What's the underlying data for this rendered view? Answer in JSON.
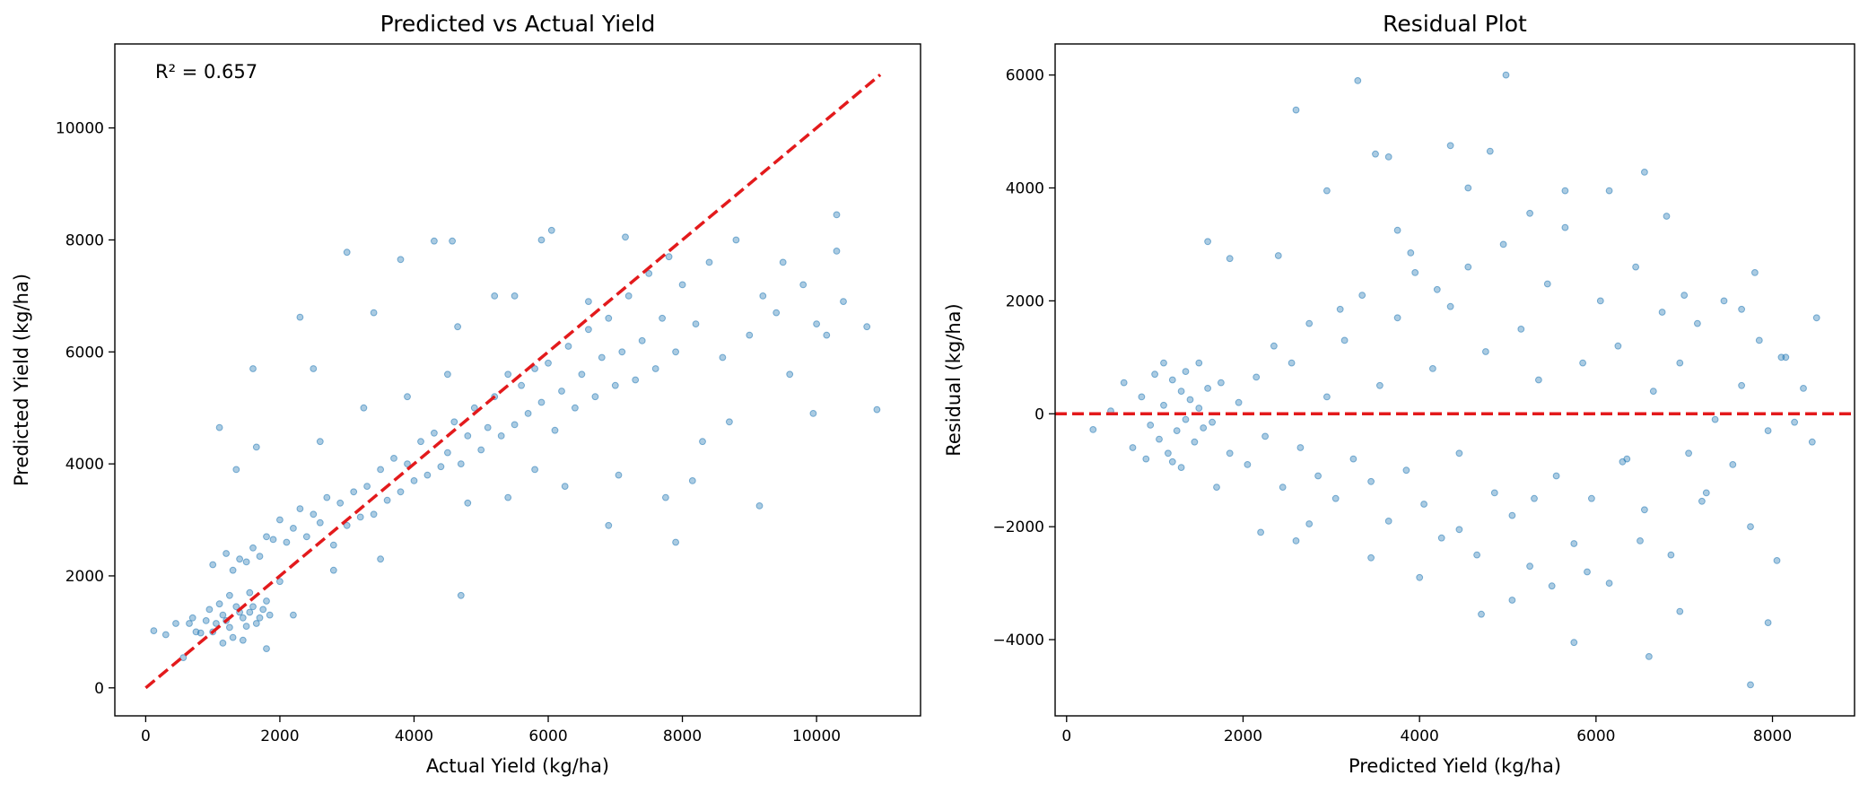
{
  "colors": {
    "points": "#1f77b4",
    "reference_line": "#e31a1c",
    "axes": "#000000",
    "background": "#ffffff"
  },
  "chart_data": [
    {
      "type": "scatter",
      "title": "Predicted vs Actual Yield",
      "xlabel": "Actual Yield (kg/ha)",
      "ylabel": "Predicted Yield (kg/ha)",
      "xlim": [
        -460,
        11550
      ],
      "ylim": [
        -500,
        11500
      ],
      "xticks": [
        0,
        2000,
        4000,
        6000,
        8000,
        10000
      ],
      "yticks": [
        0,
        2000,
        4000,
        6000,
        8000,
        10000
      ],
      "xtick_labels": [
        "0",
        "2000",
        "4000",
        "6000",
        "8000",
        "10000"
      ],
      "ytick_labels": [
        "0",
        "2000",
        "4000",
        "6000",
        "8000",
        "10000"
      ],
      "grid": false,
      "annotation": "R² = 0.657",
      "reference_line": {
        "style": "dashed",
        "from": [
          0,
          0
        ],
        "to": [
          10950,
          10950
        ]
      },
      "points": [
        [
          560,
          540
        ],
        [
          120,
          1020
        ],
        [
          300,
          950
        ],
        [
          450,
          1150
        ],
        [
          700,
          1250
        ],
        [
          820,
          980
        ],
        [
          950,
          1400
        ],
        [
          1050,
          1150
        ],
        [
          1150,
          1300
        ],
        [
          1250,
          1080
        ],
        [
          1350,
          1450
        ],
        [
          1450,
          1250
        ],
        [
          1550,
          1350
        ],
        [
          1650,
          1150
        ],
        [
          1750,
          1400
        ],
        [
          1850,
          1300
        ],
        [
          900,
          1200
        ],
        [
          1000,
          1000
        ],
        [
          1100,
          1500
        ],
        [
          1200,
          1200
        ],
        [
          1300,
          900
        ],
        [
          1400,
          1350
        ],
        [
          1500,
          1100
        ],
        [
          1600,
          1450
        ],
        [
          1700,
          1250
        ],
        [
          1800,
          1550
        ],
        [
          1250,
          1650
        ],
        [
          1550,
          1700
        ],
        [
          1150,
          800
        ],
        [
          1450,
          850
        ],
        [
          750,
          1000
        ],
        [
          650,
          1150
        ],
        [
          1000,
          2200
        ],
        [
          1200,
          2400
        ],
        [
          1400,
          2300
        ],
        [
          1600,
          2500
        ],
        [
          1800,
          2700
        ],
        [
          1300,
          2100
        ],
        [
          1500,
          2250
        ],
        [
          1700,
          2350
        ],
        [
          1900,
          2650
        ],
        [
          2000,
          3000
        ],
        [
          2100,
          2600
        ],
        [
          2200,
          2850
        ],
        [
          2300,
          3200
        ],
        [
          2400,
          2700
        ],
        [
          2500,
          3100
        ],
        [
          2600,
          2950
        ],
        [
          2700,
          3400
        ],
        [
          2800,
          2550
        ],
        [
          2900,
          3300
        ],
        [
          3000,
          2900
        ],
        [
          3100,
          3500
        ],
        [
          3200,
          3050
        ],
        [
          3300,
          3600
        ],
        [
          3400,
          3100
        ],
        [
          3500,
          3900
        ],
        [
          3600,
          3350
        ],
        [
          3700,
          4100
        ],
        [
          3800,
          3500
        ],
        [
          3900,
          4000
        ],
        [
          4000,
          3700
        ],
        [
          4100,
          4400
        ],
        [
          4200,
          3800
        ],
        [
          4300,
          4550
        ],
        [
          4400,
          3950
        ],
        [
          4500,
          4200
        ],
        [
          4600,
          4750
        ],
        [
          4700,
          4000
        ],
        [
          4800,
          4500
        ],
        [
          4900,
          5000
        ],
        [
          5000,
          4250
        ],
        [
          5100,
          4650
        ],
        [
          5200,
          5200
        ],
        [
          5300,
          4500
        ],
        [
          5400,
          5600
        ],
        [
          5500,
          4700
        ],
        [
          5600,
          5400
        ],
        [
          5700,
          4900
        ],
        [
          5800,
          5700
        ],
        [
          5900,
          5100
        ],
        [
          6000,
          5800
        ],
        [
          6100,
          4600
        ],
        [
          6200,
          5300
        ],
        [
          6300,
          6100
        ],
        [
          6400,
          5000
        ],
        [
          6500,
          5600
        ],
        [
          6600,
          6400
        ],
        [
          6700,
          5200
        ],
        [
          6800,
          5900
        ],
        [
          6900,
          6600
        ],
        [
          7000,
          5400
        ],
        [
          7100,
          6000
        ],
        [
          7200,
          7000
        ],
        [
          7300,
          5500
        ],
        [
          7400,
          6200
        ],
        [
          7500,
          7400
        ],
        [
          7600,
          5700
        ],
        [
          7700,
          6600
        ],
        [
          7800,
          7700
        ],
        [
          7900,
          6000
        ],
        [
          8000,
          7200
        ],
        [
          8200,
          6500
        ],
        [
          8400,
          7600
        ],
        [
          8600,
          5900
        ],
        [
          8800,
          8000
        ],
        [
          9000,
          6300
        ],
        [
          9200,
          7000
        ],
        [
          9400,
          6700
        ],
        [
          9600,
          5600
        ],
        [
          9800,
          7200
        ],
        [
          10000,
          6500
        ],
        [
          10300,
          7800
        ],
        [
          10300,
          8450
        ],
        [
          10400,
          6900
        ],
        [
          10900,
          4970
        ],
        [
          9150,
          3250
        ],
        [
          7900,
          2600
        ],
        [
          6900,
          2900
        ],
        [
          4700,
          1650
        ],
        [
          3000,
          7780
        ],
        [
          3800,
          7650
        ],
        [
          4300,
          7980
        ],
        [
          4570,
          7980
        ],
        [
          6050,
          8170
        ],
        [
          5200,
          7000
        ],
        [
          5500,
          7000
        ],
        [
          2300,
          6620
        ],
        [
          1100,
          4650
        ],
        [
          1350,
          3900
        ],
        [
          1600,
          5700
        ],
        [
          2500,
          5700
        ],
        [
          3400,
          6700
        ],
        [
          4650,
          6450
        ],
        [
          3500,
          2300
        ],
        [
          2800,
          2100
        ],
        [
          2200,
          1300
        ],
        [
          2000,
          1900
        ],
        [
          1800,
          700
        ],
        [
          1650,
          4300
        ],
        [
          2600,
          4400
        ],
        [
          3250,
          5000
        ],
        [
          3900,
          5200
        ],
        [
          4500,
          5600
        ],
        [
          4800,
          3300
        ],
        [
          5400,
          3400
        ],
        [
          5800,
          3900
        ],
        [
          6250,
          3600
        ],
        [
          7050,
          3800
        ],
        [
          7750,
          3400
        ],
        [
          8300,
          4400
        ],
        [
          8700,
          4750
        ],
        [
          9500,
          7600
        ],
        [
          10750,
          6450
        ],
        [
          10150,
          6300
        ],
        [
          9950,
          4900
        ],
        [
          8150,
          3700
        ],
        [
          6600,
          6900
        ],
        [
          5900,
          8000
        ],
        [
          7150,
          8050
        ]
      ]
    },
    {
      "type": "scatter",
      "title": "Residual Plot",
      "xlabel": "Predicted Yield (kg/ha)",
      "ylabel": "Residual (kg/ha)",
      "xlim": [
        -130,
        8930
      ],
      "ylim": [
        -5350,
        6550
      ],
      "xticks": [
        0,
        2000,
        4000,
        6000,
        8000
      ],
      "yticks": [
        -4000,
        -2000,
        0,
        2000,
        4000,
        6000
      ],
      "xtick_labels": [
        "0",
        "2000",
        "4000",
        "6000",
        "8000"
      ],
      "ytick_labels": [
        "−4000",
        "−2000",
        "0",
        "2000",
        "4000",
        "6000"
      ],
      "grid": false,
      "reference_line": {
        "style": "dashed",
        "y": 0
      },
      "points": [
        [
          300,
          -280
        ],
        [
          500,
          50
        ],
        [
          650,
          550
        ],
        [
          750,
          -600
        ],
        [
          850,
          300
        ],
        [
          950,
          -200
        ],
        [
          1000,
          700
        ],
        [
          1050,
          -450
        ],
        [
          1100,
          150
        ],
        [
          1150,
          -700
        ],
        [
          1200,
          600
        ],
        [
          1250,
          -300
        ],
        [
          1300,
          400
        ],
        [
          1350,
          -100
        ],
        [
          1400,
          250
        ],
        [
          1450,
          -500
        ],
        [
          1500,
          100
        ],
        [
          1550,
          -250
        ],
        [
          1600,
          450
        ],
        [
          1100,
          900
        ],
        [
          1200,
          -850
        ],
        [
          1350,
          750
        ],
        [
          1650,
          -150
        ],
        [
          1750,
          550
        ],
        [
          1850,
          -700
        ],
        [
          1950,
          200
        ],
        [
          2050,
          -900
        ],
        [
          2150,
          650
        ],
        [
          2250,
          -400
        ],
        [
          2350,
          1200
        ],
        [
          2450,
          -1300
        ],
        [
          2550,
          900
        ],
        [
          2650,
          -600
        ],
        [
          2750,
          1600
        ],
        [
          2850,
          -1100
        ],
        [
          2950,
          300
        ],
        [
          3050,
          -1500
        ],
        [
          3150,
          1300
        ],
        [
          3250,
          -800
        ],
        [
          3350,
          2100
        ],
        [
          3450,
          -1200
        ],
        [
          3550,
          500
        ],
        [
          3650,
          -1900
        ],
        [
          3750,
          1700
        ],
        [
          3850,
          -1000
        ],
        [
          3950,
          2500
        ],
        [
          4050,
          -1600
        ],
        [
          4150,
          800
        ],
        [
          4250,
          -2200
        ],
        [
          4350,
          1900
        ],
        [
          4450,
          -700
        ],
        [
          4550,
          2600
        ],
        [
          4650,
          -2500
        ],
        [
          4750,
          1100
        ],
        [
          4850,
          -1400
        ],
        [
          4950,
          3000
        ],
        [
          5050,
          -1800
        ],
        [
          5150,
          1500
        ],
        [
          5250,
          -2700
        ],
        [
          5350,
          600
        ],
        [
          5450,
          2300
        ],
        [
          5550,
          -1100
        ],
        [
          5650,
          3300
        ],
        [
          5750,
          -2300
        ],
        [
          5850,
          900
        ],
        [
          5950,
          -1500
        ],
        [
          6050,
          2000
        ],
        [
          6150,
          -3000
        ],
        [
          6250,
          1200
        ],
        [
          6350,
          -800
        ],
        [
          6450,
          2600
        ],
        [
          6550,
          -1700
        ],
        [
          6650,
          400
        ],
        [
          6750,
          1800
        ],
        [
          6850,
          -2500
        ],
        [
          6950,
          900
        ],
        [
          7050,
          -700
        ],
        [
          7150,
          1600
        ],
        [
          7250,
          -1400
        ],
        [
          7350,
          -100
        ],
        [
          7450,
          2000
        ],
        [
          7550,
          -900
        ],
        [
          7650,
          500
        ],
        [
          7750,
          -2000
        ],
        [
          7850,
          1300
        ],
        [
          7950,
          -300
        ],
        [
          8050,
          -2600
        ],
        [
          8150,
          1000
        ],
        [
          8250,
          -150
        ],
        [
          8350,
          450
        ],
        [
          8500,
          1700
        ],
        [
          7750,
          -4800
        ],
        [
          7950,
          -3700
        ],
        [
          6600,
          -4300
        ],
        [
          5750,
          -4050
        ],
        [
          5050,
          -3300
        ],
        [
          4700,
          -3550
        ],
        [
          3300,
          5900
        ],
        [
          4980,
          6000
        ],
        [
          2600,
          5380
        ],
        [
          3500,
          4600
        ],
        [
          3650,
          4550
        ],
        [
          4350,
          4750
        ],
        [
          4800,
          4650
        ],
        [
          4550,
          4000
        ],
        [
          2950,
          3950
        ],
        [
          6550,
          4280
        ],
        [
          6150,
          3950
        ],
        [
          5650,
          3950
        ],
        [
          1600,
          3050
        ],
        [
          1850,
          2750
        ],
        [
          2400,
          2800
        ],
        [
          3750,
          3250
        ],
        [
          4200,
          2200
        ],
        [
          5250,
          3550
        ],
        [
          6800,
          3500
        ],
        [
          7800,
          2500
        ],
        [
          8100,
          1000
        ],
        [
          8450,
          -500
        ],
        [
          7200,
          -1550
        ],
        [
          6950,
          -3500
        ],
        [
          6500,
          -2250
        ],
        [
          5900,
          -2800
        ],
        [
          5500,
          -3050
        ],
        [
          4000,
          -2900
        ],
        [
          3450,
          -2550
        ],
        [
          2750,
          -1950
        ],
        [
          2200,
          -2100
        ],
        [
          1700,
          -1300
        ],
        [
          900,
          -800
        ],
        [
          1300,
          -950
        ],
        [
          1500,
          900
        ],
        [
          2600,
          -2250
        ],
        [
          3100,
          1850
        ],
        [
          3900,
          2850
        ],
        [
          4450,
          -2050
        ],
        [
          5300,
          -1500
        ],
        [
          6300,
          -850
        ],
        [
          7000,
          2100
        ],
        [
          7650,
          1850
        ]
      ]
    }
  ]
}
